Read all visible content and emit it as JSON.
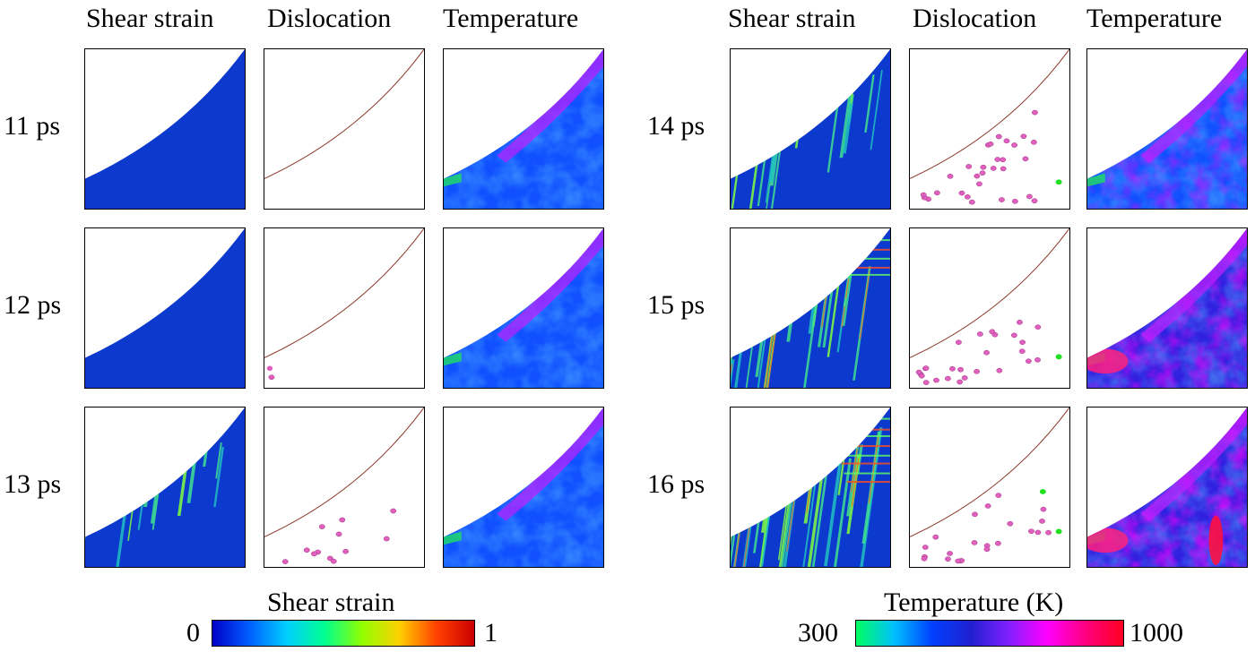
{
  "column_titles": [
    "Shear strain",
    "Dislocation",
    "Temperature",
    "Shear strain",
    "Dislocation",
    "Temperature"
  ],
  "time_labels": [
    "11 ps",
    "12 ps",
    "13 ps",
    "14 ps",
    "15 ps",
    "16 ps"
  ],
  "colorbars": {
    "shear": {
      "title": "Shear strain",
      "min": "0",
      "max": "1"
    },
    "temperature": {
      "title": "Temperature (K)",
      "min": "300",
      "max": "1000"
    }
  },
  "colors": {
    "shear_gradient": [
      "#0000c8",
      "#0060ff",
      "#00d0ff",
      "#00ff90",
      "#90ff00",
      "#ffd000",
      "#ff4000",
      "#c80000"
    ],
    "temperature_gradient": [
      "#00ff60",
      "#00c0ff",
      "#0040ff",
      "#2020d0",
      "#8020ff",
      "#ff00ff",
      "#ff0080",
      "#ff0020"
    ],
    "dislocation_dot": "#e060c0",
    "dislocation_dot_green": "#20e020",
    "interface_line": "#8a3a2a"
  }
}
